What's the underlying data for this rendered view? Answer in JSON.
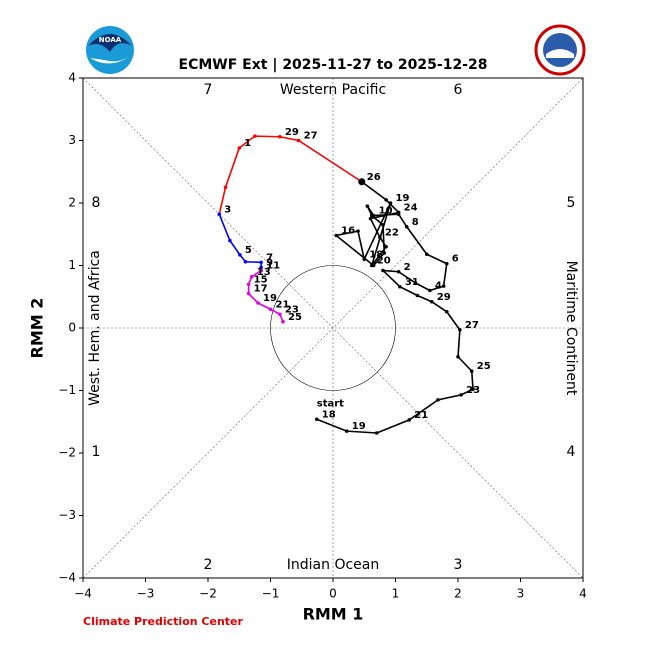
{
  "chart_data": {
    "type": "line",
    "title": "ECMWF Ext | 2025-11-27 to 2025-12-28",
    "xlabel": "RMM 1",
    "ylabel": "RMM 2",
    "xlim": [
      -4,
      4
    ],
    "ylim": [
      -4,
      4
    ],
    "xticks": [
      {
        "value": -4,
        "label": "−4"
      },
      {
        "value": -3,
        "label": "−3"
      },
      {
        "value": -2,
        "label": "−2"
      },
      {
        "value": -1,
        "label": "−1"
      },
      0,
      1,
      2,
      3,
      4
    ],
    "yticks": [
      {
        "value": -4,
        "label": "−4"
      },
      {
        "value": -3,
        "label": "−3"
      },
      {
        "value": -2,
        "label": "−2"
      },
      {
        "value": -1,
        "label": "−1"
      },
      0,
      1,
      2,
      3,
      4
    ],
    "phase_labels": [
      "1",
      "2",
      "3",
      "4",
      "5",
      "6",
      "7",
      "8"
    ],
    "region_labels": [
      "Western Pacific",
      "Maritime Continent",
      "Indian Ocean",
      "West. Hem. and Africa"
    ],
    "annotation": "start",
    "source": "Climate Prediction Center",
    "logo_text": "NOAA",
    "series": [
      {
        "color": "#000000",
        "x": [
          -0.26,
          0.22,
          0.7,
          1.22,
          1.68,
          2.05,
          2.24,
          2.22,
          2.0,
          2.03,
          1.82,
          1.58,
          1.35,
          1.07,
          0.8,
          1.05,
          1.32,
          1.55,
          1.77,
          1.82,
          1.5,
          1.18,
          1.05,
          0.65,
          0.55,
          0.62,
          0.8,
          0.82,
          0.65,
          0.05,
          0.4,
          0.5,
          0.92,
          0.62,
          0.85,
          0.75,
          0.6,
          1.05,
          0.85,
          0.46
        ],
        "values": [
          -1.46,
          -1.65,
          -1.68,
          -1.47,
          -1.15,
          -1.07,
          -0.98,
          -0.69,
          -0.46,
          -0.03,
          0.26,
          0.42,
          0.52,
          0.66,
          0.92,
          0.9,
          0.72,
          0.6,
          0.67,
          1.03,
          1.18,
          1.62,
          1.82,
          1.8,
          1.95,
          1.8,
          1.65,
          1.2,
          1.0,
          1.48,
          1.55,
          1.1,
          2.0,
          1.0,
          1.3,
          1.45,
          1.75,
          1.85,
          2.05,
          2.34
        ],
        "labels": [
          "18",
          "19",
          null,
          "21",
          null,
          "23",
          null,
          "25",
          null,
          "27",
          null,
          "29",
          null,
          "31",
          null,
          "2",
          null,
          "4",
          null,
          "6",
          null,
          "8",
          null,
          "10",
          null,
          null,
          null,
          null,
          null,
          "16",
          null,
          "18",
          "19",
          "20",
          null,
          "22",
          null,
          "24",
          null,
          "26"
        ]
      },
      {
        "color": "#ff0000",
        "x": [
          0.46,
          -0.55,
          -0.85,
          -1.25,
          -1.5,
          -1.72,
          -1.82
        ],
        "values": [
          2.34,
          3.0,
          3.06,
          3.07,
          2.88,
          2.25,
          1.82
        ],
        "labels": [
          null,
          "27",
          "29",
          null,
          "1",
          null,
          "3"
        ]
      },
      {
        "color": "#0000ff",
        "x": [
          -1.82,
          -1.65,
          -1.49,
          -1.4,
          -1.15,
          -1.15,
          -1.15
        ],
        "values": [
          1.82,
          1.4,
          1.17,
          1.06,
          1.05,
          0.97,
          0.92
        ],
        "labels": [
          null,
          null,
          "5",
          null,
          "7",
          "9",
          "11"
        ]
      },
      {
        "color": "#e000e0",
        "x": [
          -1.15,
          -1.3,
          -1.35,
          -1.35,
          -1.2,
          -1.0,
          -0.85,
          -0.8
        ],
        "values": [
          0.92,
          0.82,
          0.7,
          0.55,
          0.4,
          0.3,
          0.22,
          0.1
        ],
        "labels": [
          null,
          "13",
          "15",
          "17",
          "19",
          "21",
          "23",
          "25"
        ]
      }
    ]
  }
}
